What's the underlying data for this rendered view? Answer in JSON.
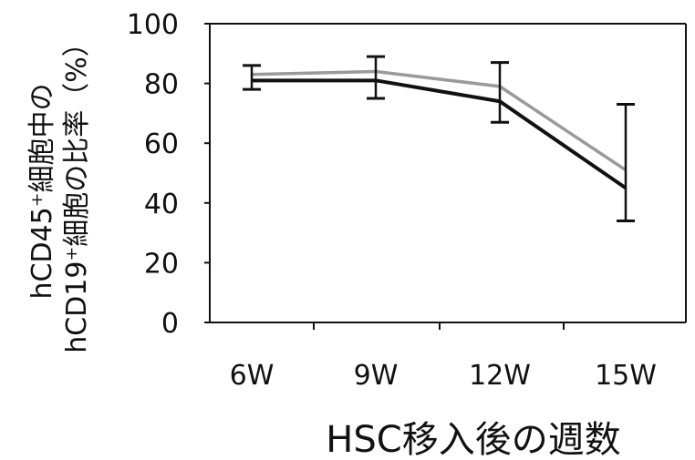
{
  "chart_data": {
    "type": "line",
    "title": "",
    "xlabel": "HSC移入後の週数",
    "ylabel": [
      "hCD45⁺細胞中の",
      "hCD19⁺細胞の比率（%）"
    ],
    "categories": [
      "6W",
      "9W",
      "12W",
      "15W"
    ],
    "ylim": [
      0,
      100
    ],
    "yticks": [
      0,
      20,
      40,
      60,
      80,
      100
    ],
    "grid": false,
    "legend": "none",
    "series": [
      {
        "color": "#111111",
        "values": [
          81,
          81,
          74,
          45
        ],
        "error": [
          [
            78,
            86
          ],
          [
            75,
            89
          ],
          [
            67,
            87
          ],
          [
            34,
            73
          ]
        ]
      },
      {
        "color": "#9a9a9a",
        "values": [
          83,
          84,
          79,
          51
        ]
      }
    ]
  }
}
